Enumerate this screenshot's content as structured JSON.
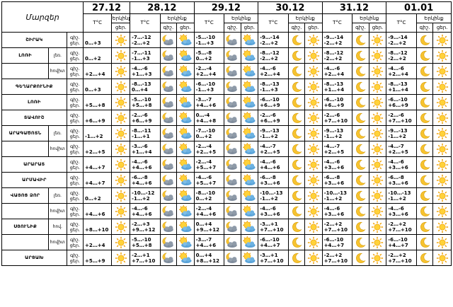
{
  "header": {
    "corner": "Մարզեր",
    "dates": [
      "27.12",
      "28.12",
      "29.12",
      "30.12",
      "31.12",
      "01.01"
    ],
    "temp_label": "T°C",
    "sky_label": "Երկինք",
    "night_label": "գիշ.",
    "day_label": "ցեր."
  },
  "rows": [
    {
      "region": "ՇԻՐԱԿ",
      "sub": "",
      "temps": [
        "0…+3",
        "-7…-12|-2…+2",
        "-5…-10|-1…+3",
        "-9…-14|-2…+2",
        "-9…-14|-2…+2",
        "-9…-14|-2…+2"
      ],
      "icons": [
        [
          "sun"
        ],
        [
          "cloud-moon",
          "partly-sunny"
        ],
        [
          "cloud-moon",
          "partly-sunny"
        ],
        [
          "moon",
          "sun"
        ],
        [
          "moon",
          "sun"
        ],
        [
          "moon",
          "sun"
        ]
      ]
    },
    {
      "region": "ԼՈՌԻ",
      "sub": "լեռ.",
      "temps": [
        "0…+2",
        "-7…-11|-1…+3",
        "-5…-8|0…+2",
        "-8…-12|-2…+2",
        "-8…-12|-2…+2",
        "-8…-12|-2…+2"
      ],
      "icons": [
        [
          "sun"
        ],
        [
          "cloud-moon",
          "partly-sunny"
        ],
        [
          "cloud-moon",
          "partly-sunny"
        ],
        [
          "moon",
          "sun"
        ],
        [
          "moon",
          "sun"
        ],
        [
          "moon",
          "sun"
        ]
      ]
    },
    {
      "region": "",
      "sub": "հովիտ",
      "temps": [
        "+2…+4",
        "-4…-6|+1…+3",
        "-2…-4|+2…+4",
        "-4…-6|+2…+4",
        "-4…-6|+2…+4",
        "-4…-6|+2…+4"
      ],
      "icons": [
        [
          "sun"
        ],
        [
          "cloud-moon",
          "partly-sunny"
        ],
        [
          "cloud-moon",
          "partly-sunny"
        ],
        [
          "moon",
          "sun"
        ],
        [
          "moon",
          "sun"
        ],
        [
          "moon",
          "sun"
        ]
      ]
    },
    {
      "region": "ԳԵՂԱՐՔՈՒՆԻՔ",
      "sub": "",
      "temps": [
        "0…+3",
        "-8…-13|0…+4",
        "-6…-10|-1…+3",
        "-8…-13|-1…+3",
        "-8…-13|+1…+4",
        "-8…-13|+1…+4"
      ],
      "icons": [
        [
          "sun"
        ],
        [
          "cloud-moon",
          "partly-sunny"
        ],
        [
          "cloud-moon",
          "partly-sunny"
        ],
        [
          "moon",
          "sun"
        ],
        [
          "moon",
          "sun"
        ],
        [
          "moon",
          "sun"
        ]
      ]
    },
    {
      "region": "ԼՈՌԻ",
      "sub": "",
      "temps": [
        "+5…+8",
        "-5…-10|+5…+8",
        "-3…-7|+4…+6",
        "-6…-10|+6…+9",
        "-6…-10|+6…+9",
        "-6…-10|+6…+9"
      ],
      "icons": [
        [
          "sun"
        ],
        [
          "cloud-moon",
          "partly-sunny"
        ],
        [
          "cloud-moon",
          "partly-sunny"
        ],
        [
          "moon",
          "sun"
        ],
        [
          "moon",
          "sun"
        ],
        [
          "moon",
          "sun"
        ]
      ]
    },
    {
      "region": "ՏԱՎՈՒՇ",
      "sub": "",
      "temps": [
        "+6…+9",
        "-2…-6|+6…+9",
        "0…-4|+4…+8",
        "-2…-6|+6…+9",
        "-2…-6|+7…+10",
        "-2…-6|+7…+10"
      ],
      "icons": [
        [
          "sun"
        ],
        [
          "cloud-moon",
          "partly-sunny"
        ],
        [
          "cloud-moon",
          "partly-sunny"
        ],
        [
          "moon",
          "sun"
        ],
        [
          "moon",
          "sun"
        ],
        [
          "moon",
          "sun"
        ]
      ]
    },
    {
      "region": "ԱՐԱԳԱԾՈՏՆ",
      "sub": "լեռ.",
      "temps": [
        "-1…+2",
        "-8…-11|-1…+1",
        "-7…-10|0…+2",
        "-9…-13|-1…+2",
        "-9…-13|-1…+2",
        "-9…-13|-1…+2"
      ],
      "icons": [
        [
          "sun"
        ],
        [
          "cloud-moon",
          "partly-sunny"
        ],
        [
          "cloud-moon",
          "partly-sunny"
        ],
        [
          "moon",
          "sun"
        ],
        [
          "moon",
          "sun"
        ],
        [
          "moon",
          "sun"
        ]
      ]
    },
    {
      "region": "",
      "sub": "հովիտ",
      "temps": [
        "+2…+5",
        "-3…-6|+1…+4",
        "-2…-4|+2…+5",
        "-4…-7|+2…+5",
        "-4…-7|+2…+5",
        "-4…-7|+2…+5"
      ],
      "icons": [
        [
          "sun"
        ],
        [
          "cloud-moon",
          "partly-sunny"
        ],
        [
          "cloud-moon",
          "partly-sunny"
        ],
        [
          "moon",
          "sun"
        ],
        [
          "moon",
          "sun"
        ],
        [
          "moon",
          "sun"
        ]
      ]
    },
    {
      "region": "ԱՐԱՐԱՏ",
      "sub": "",
      "temps": [
        "+4…+7",
        "-4…-6|+4…+6",
        "-2…-4|+5…+7",
        "-4…-6|+4…+6",
        "-4…-6|+3…+6",
        "-4…-6|+3…+6"
      ],
      "icons": [
        [
          "sun"
        ],
        [
          "cloud-moon",
          "partly-sunny"
        ],
        [
          "cloud-moon",
          "partly-sunny"
        ],
        [
          "moon",
          "sun"
        ],
        [
          "moon",
          "sun"
        ],
        [
          "moon",
          "sun"
        ]
      ]
    },
    {
      "region": "ԱՐՄԱՎԻՐ",
      "sub": "",
      "temps": [
        "+4…+7",
        "-6…-8|+4…+6",
        "-4…-6|+5…+7",
        "-6…-8|+3…+6",
        "-6…-8|+3…+6",
        "-6…-8|+3…+6"
      ],
      "icons": [
        [
          "sun"
        ],
        [
          "cloud-moon",
          "partly-sunny"
        ],
        [
          "cloud-moon",
          "partly-sunny"
        ],
        [
          "moon",
          "sun"
        ],
        [
          "moon",
          "sun"
        ],
        [
          "moon",
          "sun"
        ]
      ]
    },
    {
      "region": "ՎԱՅՈՑ ՁՈՐ",
      "sub": "լեռ.",
      "temps": [
        "0…+2",
        "-10…-12|-1…+2",
        "-8…-10|0…+2",
        "-10…-13|-1…+2",
        "-10…-13|-1…+2",
        "-10…-13|-1…+2"
      ],
      "icons": [
        [
          "sun"
        ],
        [
          "cloud-moon",
          "partly-sunny"
        ],
        [
          "cloud-moon",
          "partly-sunny"
        ],
        [
          "moon",
          "sun"
        ],
        [
          "moon",
          "sun"
        ],
        [
          "moon",
          "sun"
        ]
      ]
    },
    {
      "region": "",
      "sub": "հովիտ",
      "temps": [
        "+4…+6",
        "-4…-6|+4…+6",
        "-2…-4|+4…+6",
        "-4…-6|+3…+6",
        "-4…-6|+3…+6",
        "-4…-6|+3…+6"
      ],
      "icons": [
        [
          "sun"
        ],
        [
          "cloud-moon",
          "partly-sunny"
        ],
        [
          "cloud-moon",
          "partly-sunny"
        ],
        [
          "moon",
          "sun"
        ],
        [
          "moon",
          "sun"
        ],
        [
          "moon",
          "sun"
        ]
      ]
    },
    {
      "region": "ՍՅՈՒՆԻՔ",
      "sub": "հով.",
      "temps": [
        "+8…+10",
        "-2…+3|+9…+12",
        "0…+4|+9…+12",
        "-3…+1|+7…+10",
        "-2…+2|+7…+10",
        "-2…+2|+7…+10"
      ],
      "icons": [
        [
          "sun"
        ],
        [
          "cloud-moon",
          "partly-sunny"
        ],
        [
          "cloud-moon",
          "partly-sunny"
        ],
        [
          "moon",
          "sun"
        ],
        [
          "moon",
          "sun"
        ],
        [
          "moon",
          "sun"
        ]
      ]
    },
    {
      "region": "",
      "sub": "հովիտ",
      "temps": [
        "+2…+4",
        "-5…-10|+5…+8",
        "-3…-7|+4…+6",
        "-6…-10|+4…+7",
        "-6…-10|+4…+7",
        "-6…-10|+4…+7"
      ],
      "icons": [
        [
          "sun"
        ],
        [
          "cloud-moon",
          "partly-sunny"
        ],
        [
          "cloud-moon",
          "partly-sunny"
        ],
        [
          "moon",
          "sun"
        ],
        [
          "moon",
          "sun"
        ],
        [
          "moon",
          "sun"
        ]
      ]
    },
    {
      "region": "ԱՐՑԱԽ",
      "sub": "",
      "temps": [
        "+5…+9",
        "-2…+1|+7…+10",
        "0…+4|+8…+12",
        "-3…+1|+7…+10",
        "-2…+2|+7…+10",
        "-2…+2|+7…+10"
      ],
      "icons": [
        [
          "sun"
        ],
        [
          "cloud-moon",
          "partly-sunny"
        ],
        [
          "cloud-moon",
          "partly-sunny"
        ],
        [
          "moon",
          "sun"
        ],
        [
          "moon",
          "sun"
        ],
        [
          "moon",
          "sun"
        ]
      ]
    }
  ]
}
